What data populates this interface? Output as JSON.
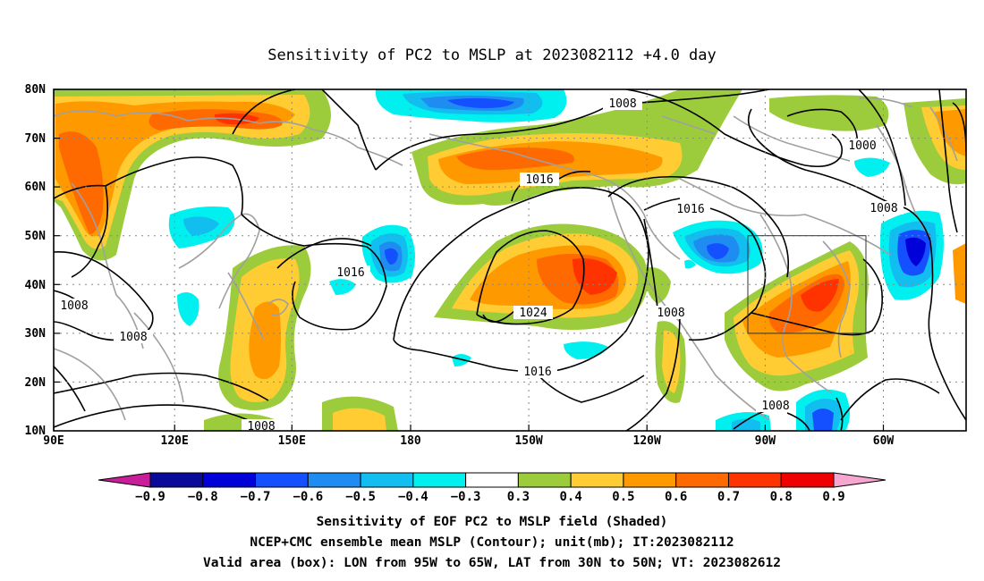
{
  "map": {
    "title": "Sensitivity of PC2 to MSLP at 2023082112 +4.0 day",
    "lon_labels": [
      "90E",
      "120E",
      "150E",
      "180",
      "150W",
      "120W",
      "90W",
      "60W"
    ],
    "lat_labels": [
      "80N",
      "70N",
      "60N",
      "50N",
      "40N",
      "30N",
      "20N",
      "10N"
    ],
    "contour_labels": [
      {
        "id": "c1008a",
        "text": "1008"
      },
      {
        "id": "c1000",
        "text": "1000"
      },
      {
        "id": "c1016a",
        "text": "1016"
      },
      {
        "id": "c1016b",
        "text": "1016"
      },
      {
        "id": "c1008b",
        "text": "1008"
      },
      {
        "id": "c1016c",
        "text": "1016"
      },
      {
        "id": "c1024",
        "text": "1024"
      },
      {
        "id": "c1008c",
        "text": "1008"
      },
      {
        "id": "c1008d",
        "text": "1008"
      },
      {
        "id": "c1008e",
        "text": "1008"
      },
      {
        "id": "c1016d",
        "text": "1016"
      },
      {
        "id": "c1008f",
        "text": "1008"
      },
      {
        "id": "c1008g",
        "text": "1008"
      }
    ],
    "colorbar": {
      "colors": [
        "#c81e9a",
        "#0a0a9a",
        "#0000d8",
        "#1450ff",
        "#1e8cf0",
        "#12bef0",
        "#00f0f0",
        "#ffffff",
        "#9ccc3c",
        "#ffcc33",
        "#ff9900",
        "#ff6a00",
        "#ff3300",
        "#ee0000",
        "#f7a6d0"
      ],
      "labels": [
        "−0.9",
        "−0.8",
        "−0.7",
        "−0.6",
        "−0.5",
        "−0.4",
        "−0.3",
        "0.3",
        "0.4",
        "0.5",
        "0.6",
        "0.7",
        "0.8",
        "0.9"
      ]
    },
    "caption": {
      "line1": "Sensitivity of EOF PC2 to MSLP field (Shaded)",
      "line2": "NCEP+CMC ensemble mean MSLP (Contour); unit(mb); IT:2023082112",
      "line3": "Valid area (box): LON from 95W to 65W, LAT from 30N to 50N; VT: 2023082612"
    }
  }
}
